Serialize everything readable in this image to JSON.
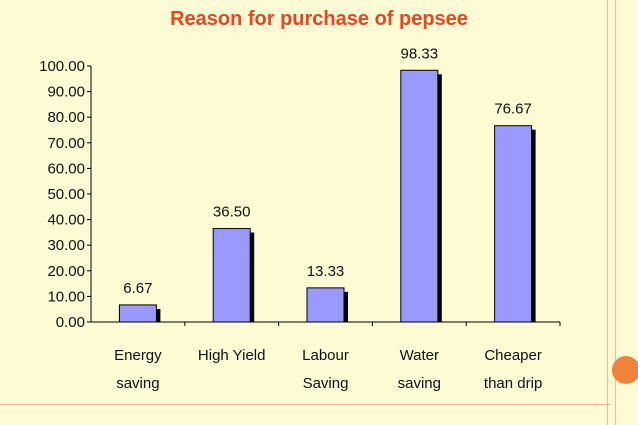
{
  "chart_data": {
    "type": "bar",
    "title": "Reason for purchase of pepsee",
    "categories": [
      [
        "Energy",
        "saving"
      ],
      [
        "High Yield"
      ],
      [
        "Labour",
        "Saving"
      ],
      [
        "Water",
        "saving"
      ],
      [
        "Cheaper",
        "than drip"
      ]
    ],
    "values": [
      6.67,
      36.5,
      13.33,
      98.33,
      76.67
    ],
    "data_labels": [
      "6.67",
      "36.50",
      "13.33",
      "98.33",
      "76.67"
    ],
    "y_ticks": [
      "0.00",
      "10.00",
      "20.00",
      "30.00",
      "40.00",
      "50.00",
      "60.00",
      "70.00",
      "80.00",
      "90.00",
      "100.00"
    ],
    "ylim": [
      0,
      100
    ],
    "xlabel": "",
    "ylabel": "",
    "grid": false,
    "legend": "none",
    "colors": {
      "bar": "#9999ff",
      "shadow": "#000000",
      "title": "#e8461e",
      "background": "#fdfbd4"
    }
  }
}
